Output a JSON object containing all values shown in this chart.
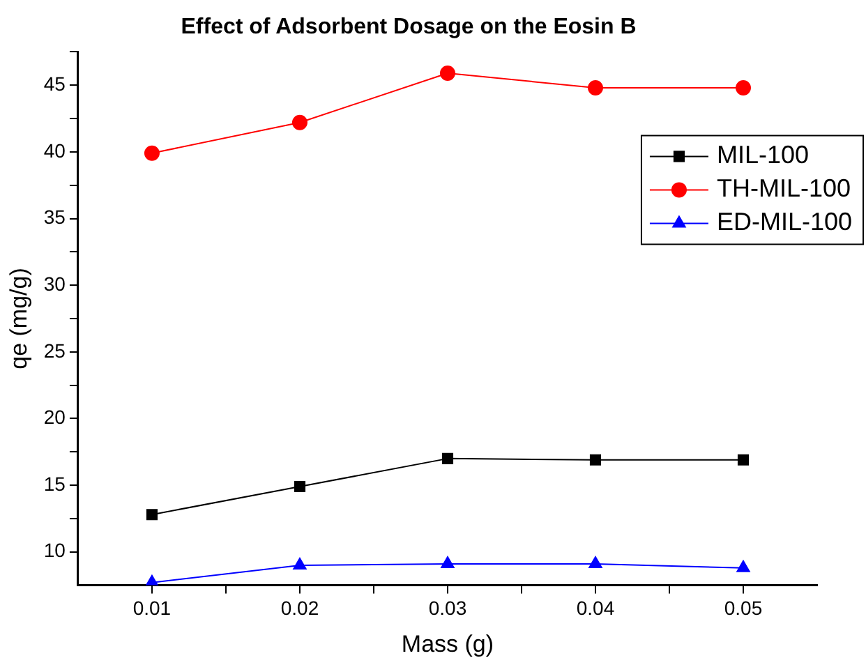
{
  "chart_data": {
    "type": "line",
    "title": "Effect of Adsorbent Dosage on the Eosin B",
    "xlabel": "Mass (g)",
    "ylabel": "qe (mg/g)",
    "x": [
      0.01,
      0.02,
      0.03,
      0.04,
      0.05
    ],
    "series": [
      {
        "name": "MIL-100",
        "color": "#000000",
        "marker": "square",
        "values": [
          12.8,
          14.9,
          17.0,
          16.9,
          16.9
        ]
      },
      {
        "name": "TH-MIL-100",
        "color": "#ff0000",
        "marker": "circle",
        "values": [
          39.9,
          42.2,
          45.9,
          44.8,
          44.8
        ]
      },
      {
        "name": "ED-MIL-100",
        "color": "#0000ff",
        "marker": "triangle",
        "values": [
          7.7,
          9.0,
          9.1,
          9.1,
          8.8
        ]
      }
    ],
    "xlim": [
      0.005,
      0.055
    ],
    "xticks": [
      {
        "value": 0.01,
        "label": "0.01"
      },
      {
        "value": 0.015,
        "label": null
      },
      {
        "value": 0.02,
        "label": "0.02"
      },
      {
        "value": 0.025,
        "label": null
      },
      {
        "value": 0.03,
        "label": "0.03"
      },
      {
        "value": 0.035,
        "label": null
      },
      {
        "value": 0.04,
        "label": "0.04"
      },
      {
        "value": 0.045,
        "label": null
      },
      {
        "value": 0.05,
        "label": "0.05"
      }
    ],
    "ylim": [
      7.5,
      47.5
    ],
    "yticks": [
      10,
      {
        "value": 12.5,
        "label": null
      },
      15,
      {
        "value": 17.5,
        "label": null
      },
      20,
      {
        "value": 22.5,
        "label": null
      },
      25,
      {
        "value": 27.5,
        "label": null
      },
      30,
      {
        "value": 32.5,
        "label": null
      },
      35,
      {
        "value": 37.5,
        "label": null
      },
      40,
      {
        "value": 42.5,
        "label": null
      },
      45,
      {
        "value": 47.5,
        "label": null
      }
    ],
    "grid": false,
    "legend": "top right",
    "line_style": "solid"
  }
}
